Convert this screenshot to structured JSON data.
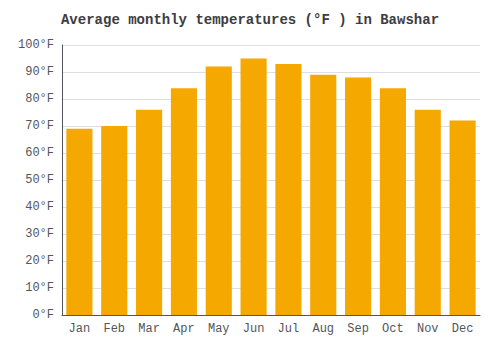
{
  "chart_data": {
    "type": "bar",
    "title": "Average monthly temperatures (°F ) in Bawshar",
    "categories": [
      "Jan",
      "Feb",
      "Mar",
      "Apr",
      "May",
      "Jun",
      "Jul",
      "Aug",
      "Sep",
      "Oct",
      "Nov",
      "Dec"
    ],
    "values": [
      69,
      70,
      76,
      84,
      92,
      95,
      93,
      89,
      88,
      84,
      76,
      72
    ],
    "color": "#F5A800",
    "ylim": [
      0,
      100
    ],
    "yticks": [
      {
        "value": 0,
        "label": "0°F"
      },
      {
        "value": 10,
        "label": "10°F"
      },
      {
        "value": 20,
        "label": "20°F"
      },
      {
        "value": 30,
        "label": "30°F"
      },
      {
        "value": 40,
        "label": "40°F"
      },
      {
        "value": 50,
        "label": "50°F"
      },
      {
        "value": 60,
        "label": "60°F"
      },
      {
        "value": 70,
        "label": "70°F"
      },
      {
        "value": 80,
        "label": "80°F"
      },
      {
        "value": 90,
        "label": "90°F"
      },
      {
        "value": 100,
        "label": "100°F"
      }
    ],
    "grid": true
  }
}
